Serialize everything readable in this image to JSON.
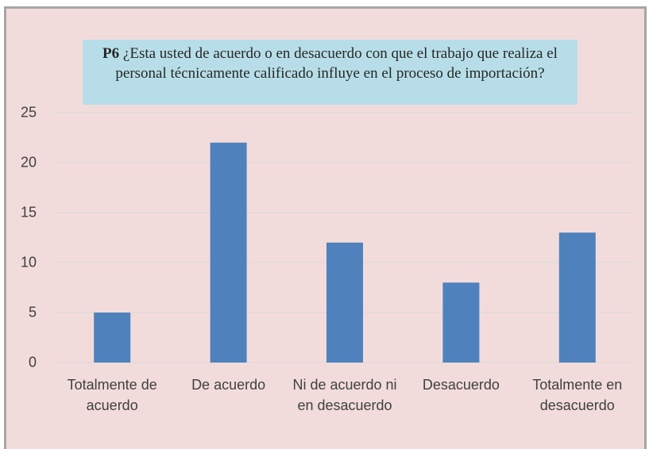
{
  "chart_data": {
    "type": "bar",
    "title_prefix": "P6",
    "title": "¿Esta usted de acuerdo o en desacuerdo con que el trabajo que realiza el personal técnicamente calificado influye en el proceso de importación?",
    "categories": [
      "Totalmente de acuerdo",
      "De acuerdo",
      "Ni de acuerdo ni en desacuerdo",
      "Desacuerdo",
      "Totalmente en desacuerdo"
    ],
    "values": [
      5,
      22,
      12,
      8,
      13
    ],
    "color": "#4f81bd",
    "ylim": [
      0,
      25
    ],
    "yticks": [
      0,
      5,
      10,
      15,
      20,
      25
    ],
    "grid": true
  }
}
